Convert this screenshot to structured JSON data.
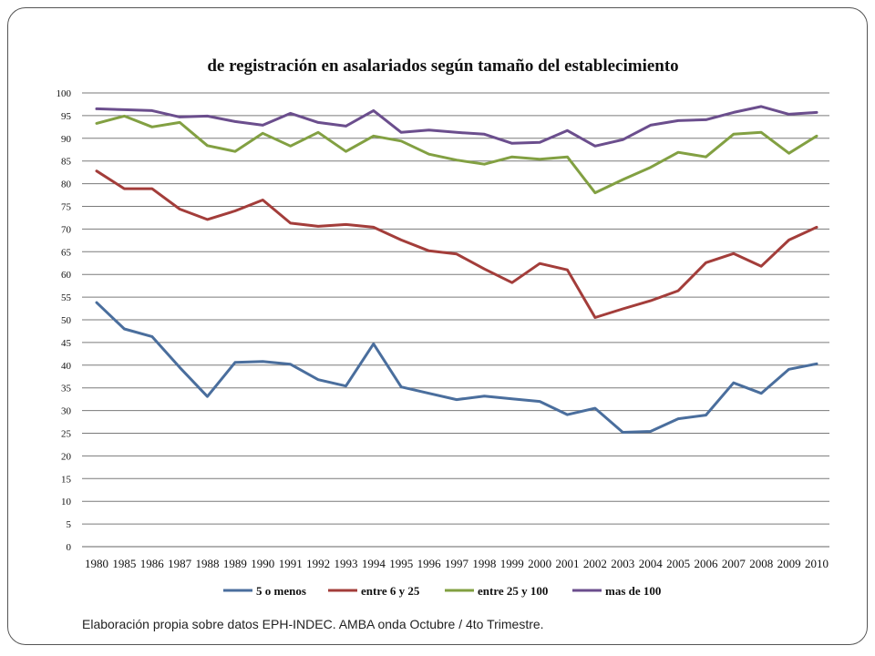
{
  "chart_data": {
    "type": "line",
    "title": "de registración en asalariados según tamaño del establecimiento",
    "xlabel": "",
    "ylabel": "",
    "ylim": [
      0,
      100
    ],
    "yticks": [
      0,
      5,
      10,
      15,
      20,
      25,
      30,
      35,
      40,
      45,
      50,
      55,
      60,
      65,
      70,
      75,
      80,
      85,
      90,
      95,
      100
    ],
    "grid": true,
    "legend_position": "bottom",
    "categories": [
      "1980",
      "1985",
      "1986",
      "1987",
      "1988",
      "1989",
      "1990",
      "1991",
      "1992",
      "1993",
      "1994",
      "1995",
      "1996",
      "1997",
      "1998",
      "1999",
      "2000",
      "2001",
      "2002",
      "2003",
      "2004",
      "2005",
      "2006",
      "2007",
      "2008",
      "2009",
      "2010"
    ],
    "series": [
      {
        "name": "5 o menos",
        "color": "#4a6e9d",
        "values": [
          53.8,
          48.0,
          46.3,
          39.5,
          33.1,
          40.6,
          40.8,
          40.2,
          36.8,
          35.4,
          44.7,
          35.2,
          33.8,
          32.4,
          33.2,
          32.6,
          32.0,
          29.1,
          30.5,
          25.2,
          25.4,
          28.2,
          29.0,
          36.1,
          33.8,
          39.1,
          40.3
        ]
      },
      {
        "name": "entre 6 y 25",
        "color": "#a33d3a",
        "values": [
          82.8,
          78.9,
          78.9,
          74.4,
          72.1,
          74.0,
          76.4,
          71.3,
          70.6,
          71.0,
          70.4,
          67.6,
          65.2,
          64.5,
          61.2,
          58.2,
          62.4,
          61.0,
          50.5,
          52.4,
          54.2,
          56.4,
          62.6,
          64.6,
          61.8,
          67.6,
          70.4
        ]
      },
      {
        "name": "entre 25 y 100",
        "color": "#82a042",
        "values": [
          93.3,
          94.9,
          92.5,
          93.5,
          88.4,
          87.1,
          91.1,
          88.3,
          91.3,
          87.1,
          90.5,
          89.4,
          86.5,
          85.2,
          84.3,
          85.9,
          85.4,
          85.9,
          78.0,
          80.9,
          83.6,
          86.9,
          85.9,
          90.9,
          91.3,
          86.7,
          90.5
        ]
      },
      {
        "name": "mas de 100",
        "color": "#6b4e8d",
        "values": [
          96.5,
          96.3,
          96.1,
          94.7,
          94.9,
          93.7,
          92.9,
          95.5,
          93.5,
          92.7,
          96.1,
          91.3,
          91.8,
          91.3,
          90.9,
          88.9,
          89.1,
          91.7,
          88.3,
          89.7,
          92.9,
          93.9,
          94.1,
          95.7,
          97.0,
          95.3,
          95.7
        ]
      }
    ]
  },
  "footnote": "Elaboración propia sobre datos EPH-INDEC. AMBA onda Octubre / 4to Trimestre."
}
